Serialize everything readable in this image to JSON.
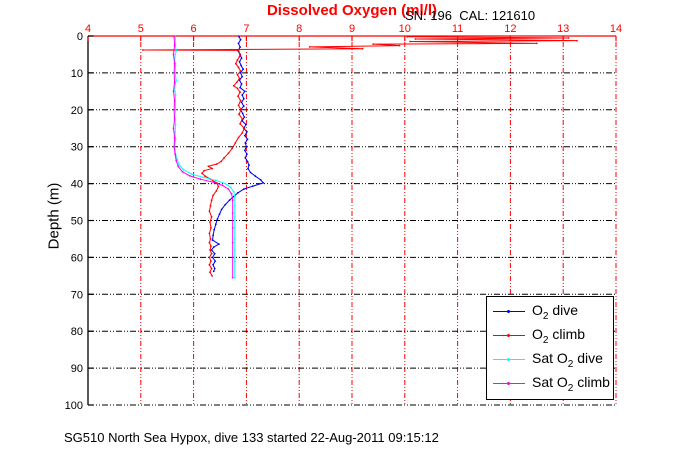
{
  "chart_data": {
    "type": "line",
    "title": "Dissolved Oxygen (ml/l)",
    "annotation": "SN: 196  CAL: 121610",
    "caption": "SG510 North Sea Hypox, dive 133 started 22-Aug-2011 09:15:12",
    "ylabel": "Depth (m)",
    "xlabel": "",
    "xlim": [
      4,
      14
    ],
    "ylim": [
      0,
      100
    ],
    "x_axis_location": "top",
    "y_axis_direction": "reversed (depth increases downward)",
    "x_ticks": [
      4,
      5,
      6,
      7,
      8,
      9,
      10,
      11,
      12,
      13,
      14
    ],
    "y_ticks": [
      0,
      10,
      20,
      30,
      40,
      50,
      60,
      70,
      80,
      90,
      100
    ],
    "grid": true,
    "colors": {
      "x_axis_and_vertical_grid": "#ff0000",
      "y_axis_and_horizontal_grid": "#000000",
      "title": "#ff0000",
      "background": "#ffffff"
    },
    "legend": {
      "position": "inside lower right",
      "entries": [
        {
          "id": "o2-dive",
          "label": "O2 dive",
          "pre": "O",
          "sub": "2",
          "post": " dive",
          "color": "#0000ee"
        },
        {
          "id": "o2-climb",
          "label": "O2 climb",
          "pre": "O",
          "sub": "2",
          "post": " climb",
          "color": "#ff0000"
        },
        {
          "id": "sat-o2-dive",
          "label": "Sat O2 dive",
          "pre": "Sat O",
          "sub": "2",
          "post": " dive",
          "color": "#00ffff"
        },
        {
          "id": "sat-o2-climb",
          "label": "Sat O2 climb",
          "pre": "Sat O",
          "sub": "2",
          "post": " climb",
          "color": "#ff00ff"
        }
      ]
    },
    "series": [
      {
        "id": "o2-dive",
        "name": "O2 dive",
        "color": "#0000ee",
        "units_x": "ml/l",
        "units_y": "m",
        "points": [
          [
            6.86,
            0.2
          ],
          [
            6.89,
            1
          ],
          [
            6.85,
            2
          ],
          [
            6.88,
            3
          ],
          [
            6.84,
            4
          ],
          [
            6.88,
            5
          ],
          [
            6.91,
            6
          ],
          [
            6.87,
            7
          ],
          [
            6.9,
            8
          ],
          [
            6.94,
            9
          ],
          [
            6.89,
            10
          ],
          [
            6.92,
            11
          ],
          [
            6.87,
            12
          ],
          [
            6.91,
            13
          ],
          [
            6.88,
            14
          ],
          [
            6.97,
            15
          ],
          [
            6.92,
            16
          ],
          [
            6.95,
            17
          ],
          [
            6.91,
            18
          ],
          [
            6.95,
            19
          ],
          [
            6.89,
            20
          ],
          [
            6.93,
            21
          ],
          [
            6.96,
            22
          ],
          [
            6.92,
            23
          ],
          [
            6.99,
            24
          ],
          [
            6.95,
            25
          ],
          [
            7.01,
            26
          ],
          [
            6.97,
            27
          ],
          [
            7.02,
            28
          ],
          [
            6.98,
            29
          ],
          [
            7.0,
            30
          ],
          [
            6.97,
            31
          ],
          [
            7.01,
            32
          ],
          [
            6.98,
            33
          ],
          [
            7.02,
            34
          ],
          [
            7.05,
            35
          ],
          [
            7.03,
            36
          ],
          [
            7.08,
            37
          ],
          [
            7.17,
            38
          ],
          [
            7.27,
            39
          ],
          [
            7.32,
            39.8
          ],
          [
            7.12,
            40.7
          ],
          [
            6.95,
            41.5
          ],
          [
            6.84,
            42.5
          ],
          [
            6.76,
            43.5
          ],
          [
            6.68,
            44.5
          ],
          [
            6.6,
            45.7
          ],
          [
            6.53,
            47
          ],
          [
            6.49,
            48.3
          ],
          [
            6.45,
            49.6
          ],
          [
            6.42,
            51
          ],
          [
            6.39,
            52.5
          ],
          [
            6.37,
            54
          ],
          [
            6.36,
            55.3
          ],
          [
            6.48,
            56.4
          ],
          [
            6.38,
            57.2
          ],
          [
            6.34,
            58
          ],
          [
            6.4,
            59
          ],
          [
            6.36,
            60
          ],
          [
            6.41,
            61
          ],
          [
            6.37,
            62
          ],
          [
            6.4,
            63
          ],
          [
            6.38,
            63.8
          ]
        ]
      },
      {
        "id": "o2-climb",
        "name": "O2 climb",
        "color": "#ff0000",
        "units_x": "ml/l",
        "units_y": "m",
        "points": [
          [
            6.35,
            65
          ],
          [
            6.31,
            64
          ],
          [
            6.34,
            63
          ],
          [
            6.3,
            62
          ],
          [
            6.33,
            61
          ],
          [
            6.3,
            60
          ],
          [
            6.34,
            59
          ],
          [
            6.31,
            58
          ],
          [
            6.33,
            57
          ],
          [
            6.3,
            56
          ],
          [
            6.32,
            55
          ],
          [
            6.3,
            53.5
          ],
          [
            6.33,
            52
          ],
          [
            6.31,
            50.5
          ],
          [
            6.34,
            49
          ],
          [
            6.3,
            47.5
          ],
          [
            6.32,
            46
          ],
          [
            6.34,
            44.5
          ],
          [
            6.37,
            43.2
          ],
          [
            6.43,
            42
          ],
          [
            6.47,
            40.8
          ],
          [
            6.44,
            39.8
          ],
          [
            6.32,
            38.8
          ],
          [
            6.22,
            38
          ],
          [
            6.16,
            37.2
          ],
          [
            6.2,
            36.5
          ],
          [
            6.35,
            35.9
          ],
          [
            6.28,
            35.3
          ],
          [
            6.44,
            34.7
          ],
          [
            6.52,
            34
          ],
          [
            6.58,
            33
          ],
          [
            6.66,
            31.8
          ],
          [
            6.73,
            30.5
          ],
          [
            6.79,
            29
          ],
          [
            6.85,
            27.5
          ],
          [
            6.92,
            26.3
          ],
          [
            6.96,
            25
          ],
          [
            6.88,
            23.8
          ],
          [
            6.92,
            22.5
          ],
          [
            6.86,
            21.2
          ],
          [
            6.9,
            20
          ],
          [
            6.85,
            18.8
          ],
          [
            6.89,
            17.5
          ],
          [
            6.84,
            16.3
          ],
          [
            6.88,
            15.2
          ],
          [
            6.83,
            14.2
          ],
          [
            6.76,
            13.5
          ],
          [
            6.82,
            12.5
          ],
          [
            6.87,
            11.5
          ],
          [
            6.83,
            10.5
          ],
          [
            6.89,
            9.5
          ],
          [
            6.85,
            8.5
          ],
          [
            6.8,
            7.5
          ],
          [
            6.83,
            6.5
          ],
          [
            6.87,
            5.6
          ],
          [
            6.88,
            4.9
          ],
          [
            6.85,
            3.9
          ],
          [
            5.04,
            3.8
          ],
          [
            9.2,
            3.45
          ],
          [
            8.2,
            2.95
          ],
          [
            9.9,
            2.6
          ],
          [
            9.4,
            2.2
          ],
          [
            12.5,
            2.0
          ],
          [
            10.1,
            1.5
          ],
          [
            13.26,
            1.25
          ],
          [
            10.2,
            0.8
          ],
          [
            13.1,
            0.55
          ],
          [
            10.05,
            0.2
          ]
        ]
      },
      {
        "id": "sat-o2-dive",
        "name": "Sat O2 dive",
        "color": "#00ffff",
        "units_x": "ml/l",
        "units_y": "m",
        "points": [
          [
            5.66,
            0.2
          ],
          [
            5.65,
            2
          ],
          [
            5.67,
            4
          ],
          [
            5.64,
            6
          ],
          [
            5.66,
            8
          ],
          [
            5.65,
            10
          ],
          [
            5.67,
            12
          ],
          [
            5.64,
            14
          ],
          [
            5.66,
            16
          ],
          [
            5.65,
            18
          ],
          [
            5.66,
            20
          ],
          [
            5.64,
            22
          ],
          [
            5.66,
            24
          ],
          [
            5.65,
            26
          ],
          [
            5.66,
            28
          ],
          [
            5.64,
            30
          ],
          [
            5.66,
            32
          ],
          [
            5.69,
            33.5
          ],
          [
            5.73,
            35
          ],
          [
            5.81,
            36.3
          ],
          [
            5.96,
            37.4
          ],
          [
            6.18,
            38.3
          ],
          [
            6.42,
            39.1
          ],
          [
            6.6,
            40
          ],
          [
            6.7,
            41
          ],
          [
            6.76,
            42.2
          ],
          [
            6.78,
            43.5
          ],
          [
            6.78,
            46
          ],
          [
            6.78,
            49
          ],
          [
            6.78,
            52
          ],
          [
            6.78,
            55
          ],
          [
            6.78,
            58
          ],
          [
            6.78,
            61
          ],
          [
            6.78,
            65.5
          ]
        ]
      },
      {
        "id": "sat-o2-climb",
        "name": "Sat O2 climb",
        "color": "#ff00ff",
        "units_x": "ml/l",
        "units_y": "m",
        "points": [
          [
            5.63,
            0.2
          ],
          [
            5.64,
            2.5
          ],
          [
            5.62,
            5
          ],
          [
            5.64,
            7.5
          ],
          [
            5.63,
            10
          ],
          [
            5.64,
            12.5
          ],
          [
            5.62,
            15
          ],
          [
            5.64,
            17.5
          ],
          [
            5.63,
            20
          ],
          [
            5.64,
            22.5
          ],
          [
            5.62,
            25
          ],
          [
            5.64,
            27.5
          ],
          [
            5.63,
            30
          ],
          [
            5.65,
            32
          ],
          [
            5.67,
            33.8
          ],
          [
            5.71,
            35.4
          ],
          [
            5.79,
            36.8
          ],
          [
            5.93,
            37.9
          ],
          [
            6.13,
            38.8
          ],
          [
            6.37,
            39.6
          ],
          [
            6.55,
            40.5
          ],
          [
            6.66,
            41.5
          ],
          [
            6.72,
            42.8
          ],
          [
            6.74,
            44.5
          ],
          [
            6.74,
            48
          ],
          [
            6.74,
            52
          ],
          [
            6.74,
            56
          ],
          [
            6.74,
            60
          ],
          [
            6.74,
            65.5
          ]
        ]
      }
    ]
  }
}
